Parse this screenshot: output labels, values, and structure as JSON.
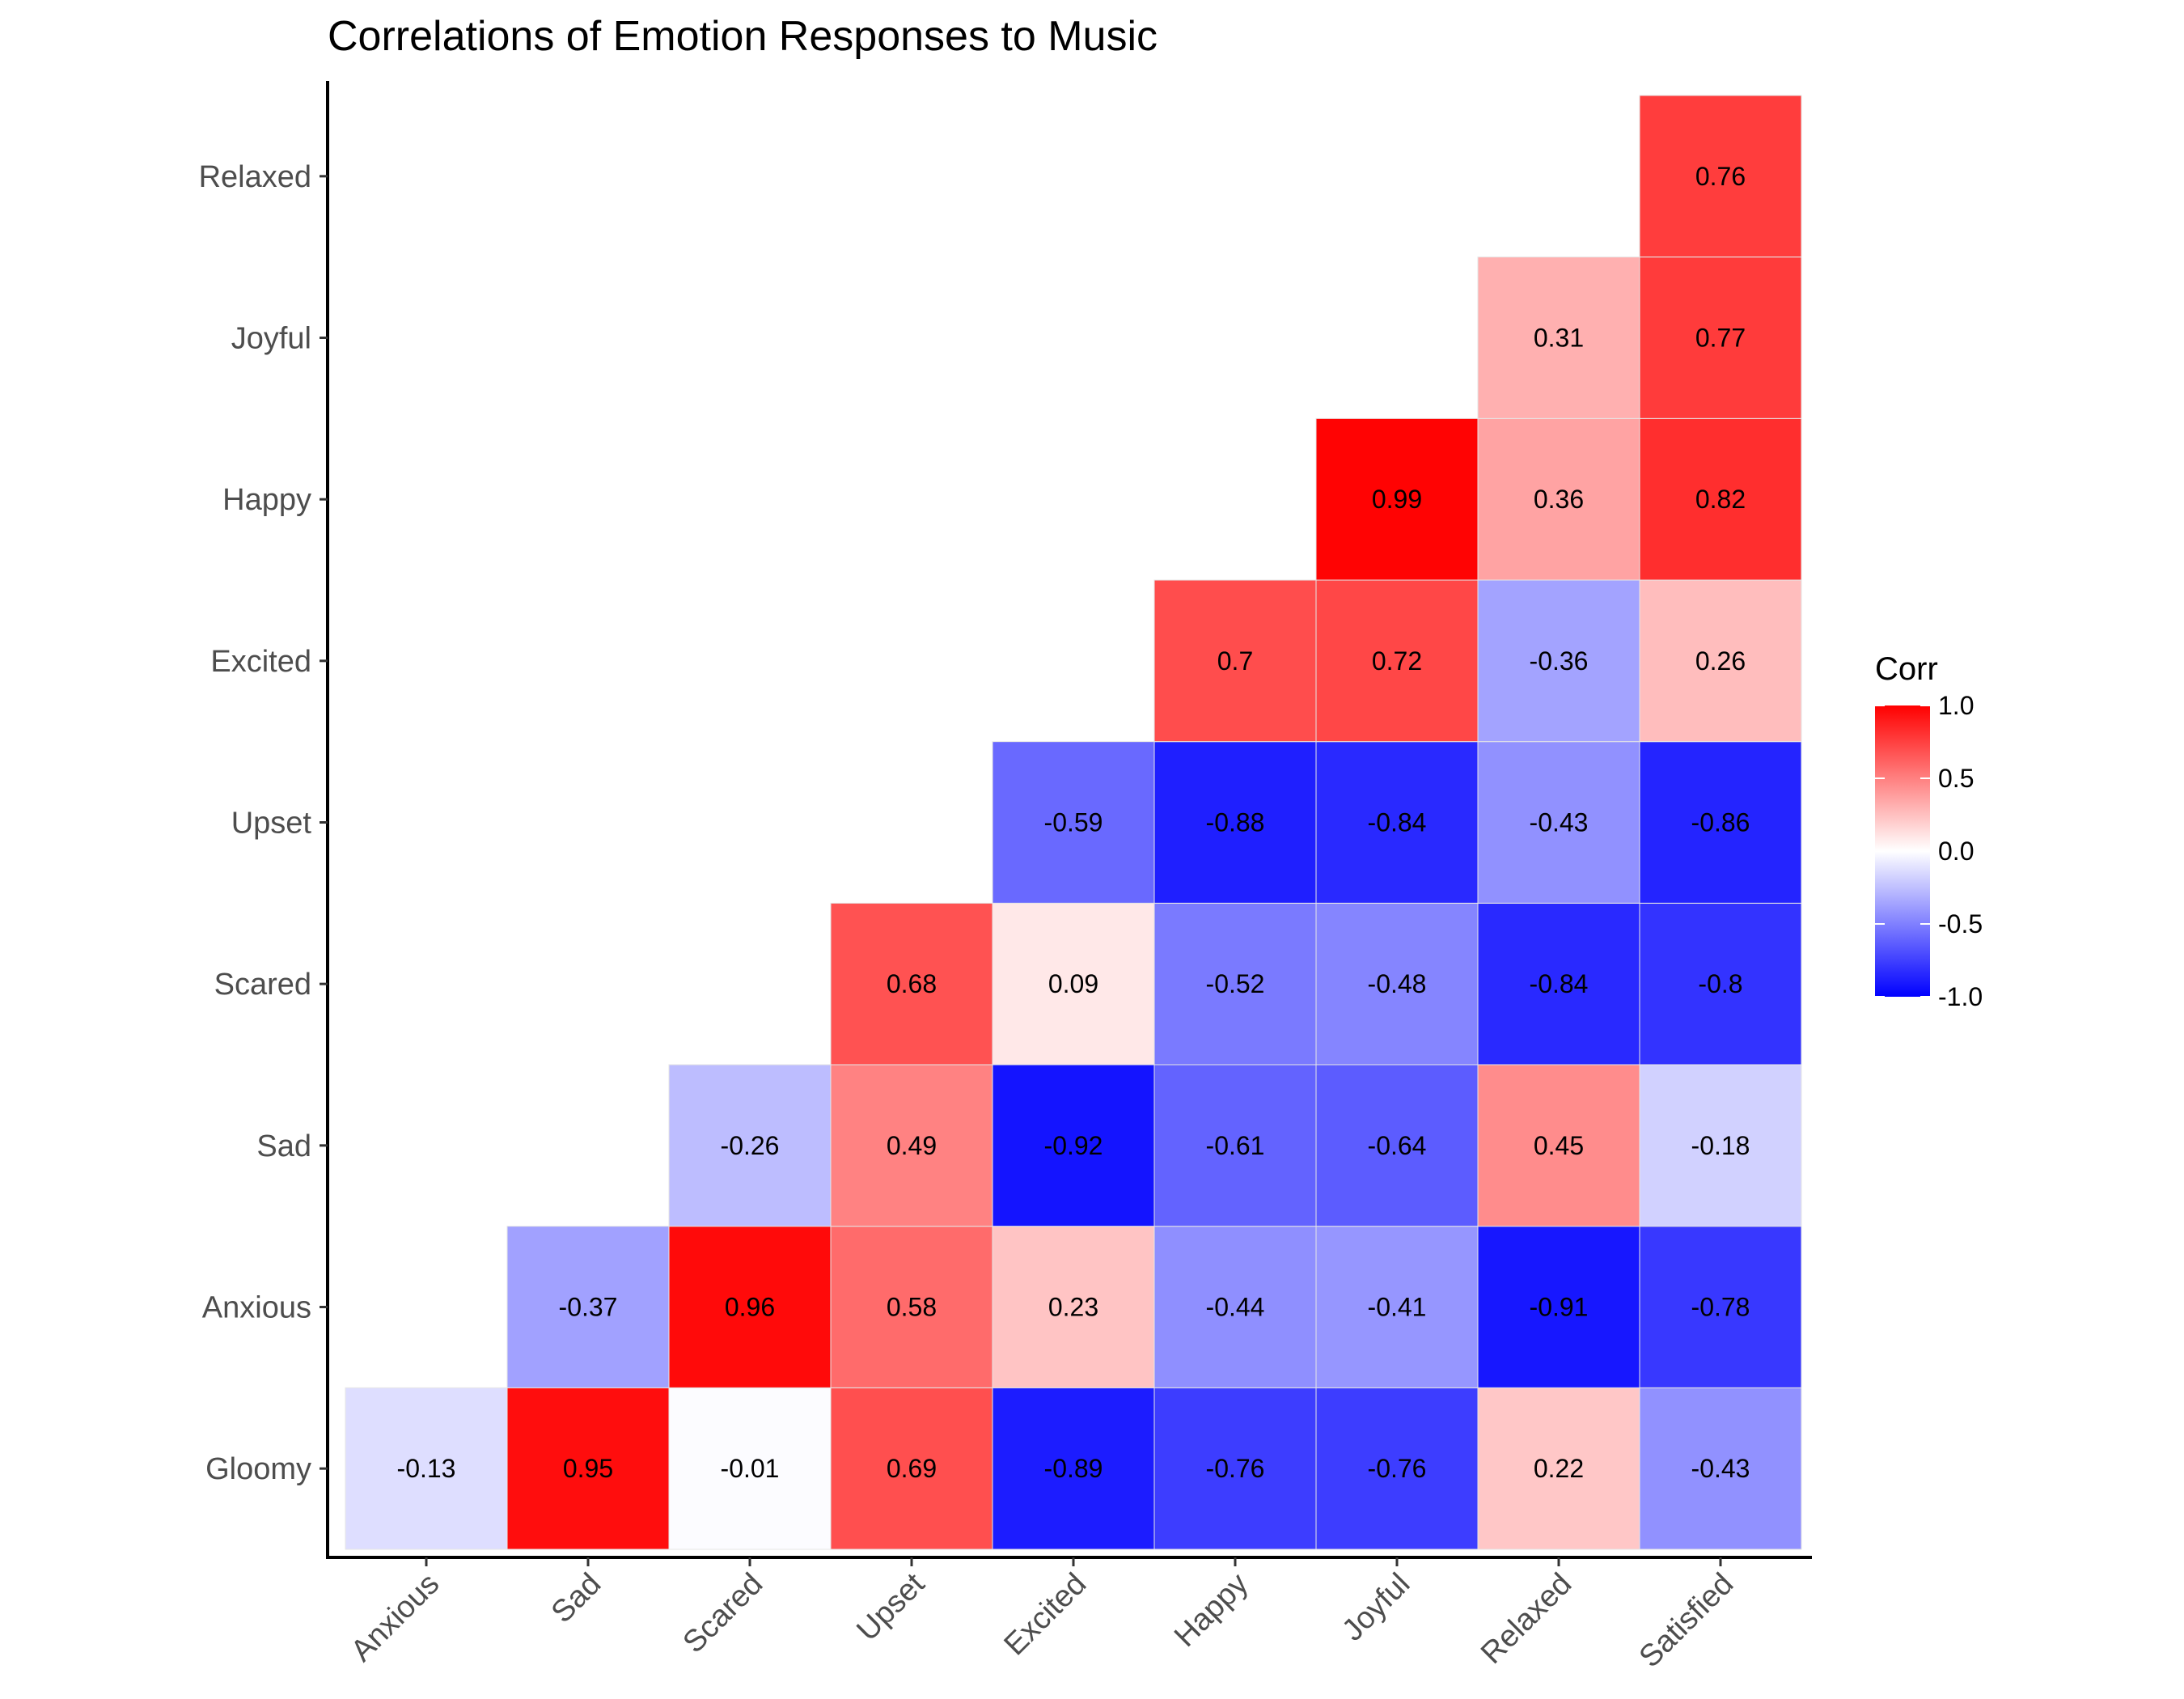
{
  "chart_data": {
    "type": "heatmap",
    "title": "Correlations of Emotion Responses to Music",
    "x_categories": [
      "Anxious",
      "Sad",
      "Scared",
      "Upset",
      "Excited",
      "Happy",
      "Joyful",
      "Relaxed",
      "Satisfied"
    ],
    "y_categories": [
      "Gloomy",
      "Anxious",
      "Sad",
      "Scared",
      "Upset",
      "Excited",
      "Happy",
      "Joyful",
      "Relaxed"
    ],
    "values": [
      [
        -0.13,
        0.95,
        -0.01,
        0.69,
        -0.89,
        -0.76,
        -0.76,
        0.22,
        -0.43
      ],
      [
        null,
        -0.37,
        0.96,
        0.58,
        0.23,
        -0.44,
        -0.41,
        -0.91,
        -0.78
      ],
      [
        null,
        null,
        -0.26,
        0.49,
        -0.92,
        -0.61,
        -0.64,
        0.45,
        -0.18
      ],
      [
        null,
        null,
        null,
        0.68,
        0.09,
        -0.52,
        -0.48,
        -0.84,
        -0.8
      ],
      [
        null,
        null,
        null,
        null,
        -0.59,
        -0.88,
        -0.84,
        -0.43,
        -0.86
      ],
      [
        null,
        null,
        null,
        null,
        null,
        0.7,
        0.72,
        -0.36,
        0.26
      ],
      [
        null,
        null,
        null,
        null,
        null,
        null,
        0.99,
        0.36,
        0.82
      ],
      [
        null,
        null,
        null,
        null,
        null,
        null,
        null,
        0.31,
        0.77
      ],
      [
        null,
        null,
        null,
        null,
        null,
        null,
        null,
        null,
        0.76
      ]
    ],
    "xlabel": "",
    "ylabel": "",
    "legend": {
      "title": "Corr",
      "position": "right",
      "ticks": [
        "1.0",
        "0.5",
        "0.0",
        "-0.5",
        "-1.0"
      ],
      "tick_values": [
        1.0,
        0.5,
        0.0,
        -0.5,
        -1.0
      ],
      "range": [
        -1,
        1
      ]
    },
    "colors": {
      "low": "#0000ff",
      "mid": "#ffffff",
      "high": "#ff0000"
    },
    "grid": false
  }
}
